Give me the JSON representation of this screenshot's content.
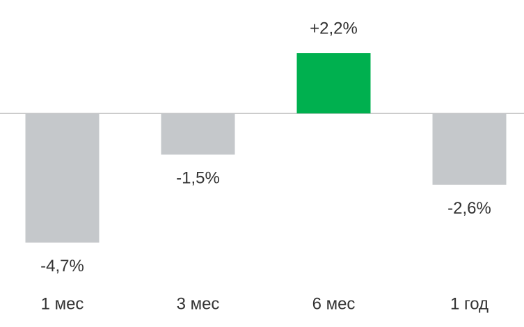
{
  "chart_data": {
    "type": "bar",
    "categories": [
      "1 мес",
      "3 мес",
      "6 мес",
      "1 год"
    ],
    "values": [
      -4.7,
      -1.5,
      2.2,
      -2.6
    ],
    "value_labels": [
      "-4,7%",
      "-1,5%",
      "+2,2%",
      "-2,6%"
    ],
    "colors": [
      "#c5c8cb",
      "#c5c8cb",
      "#00b04f",
      "#c5c8cb"
    ]
  }
}
